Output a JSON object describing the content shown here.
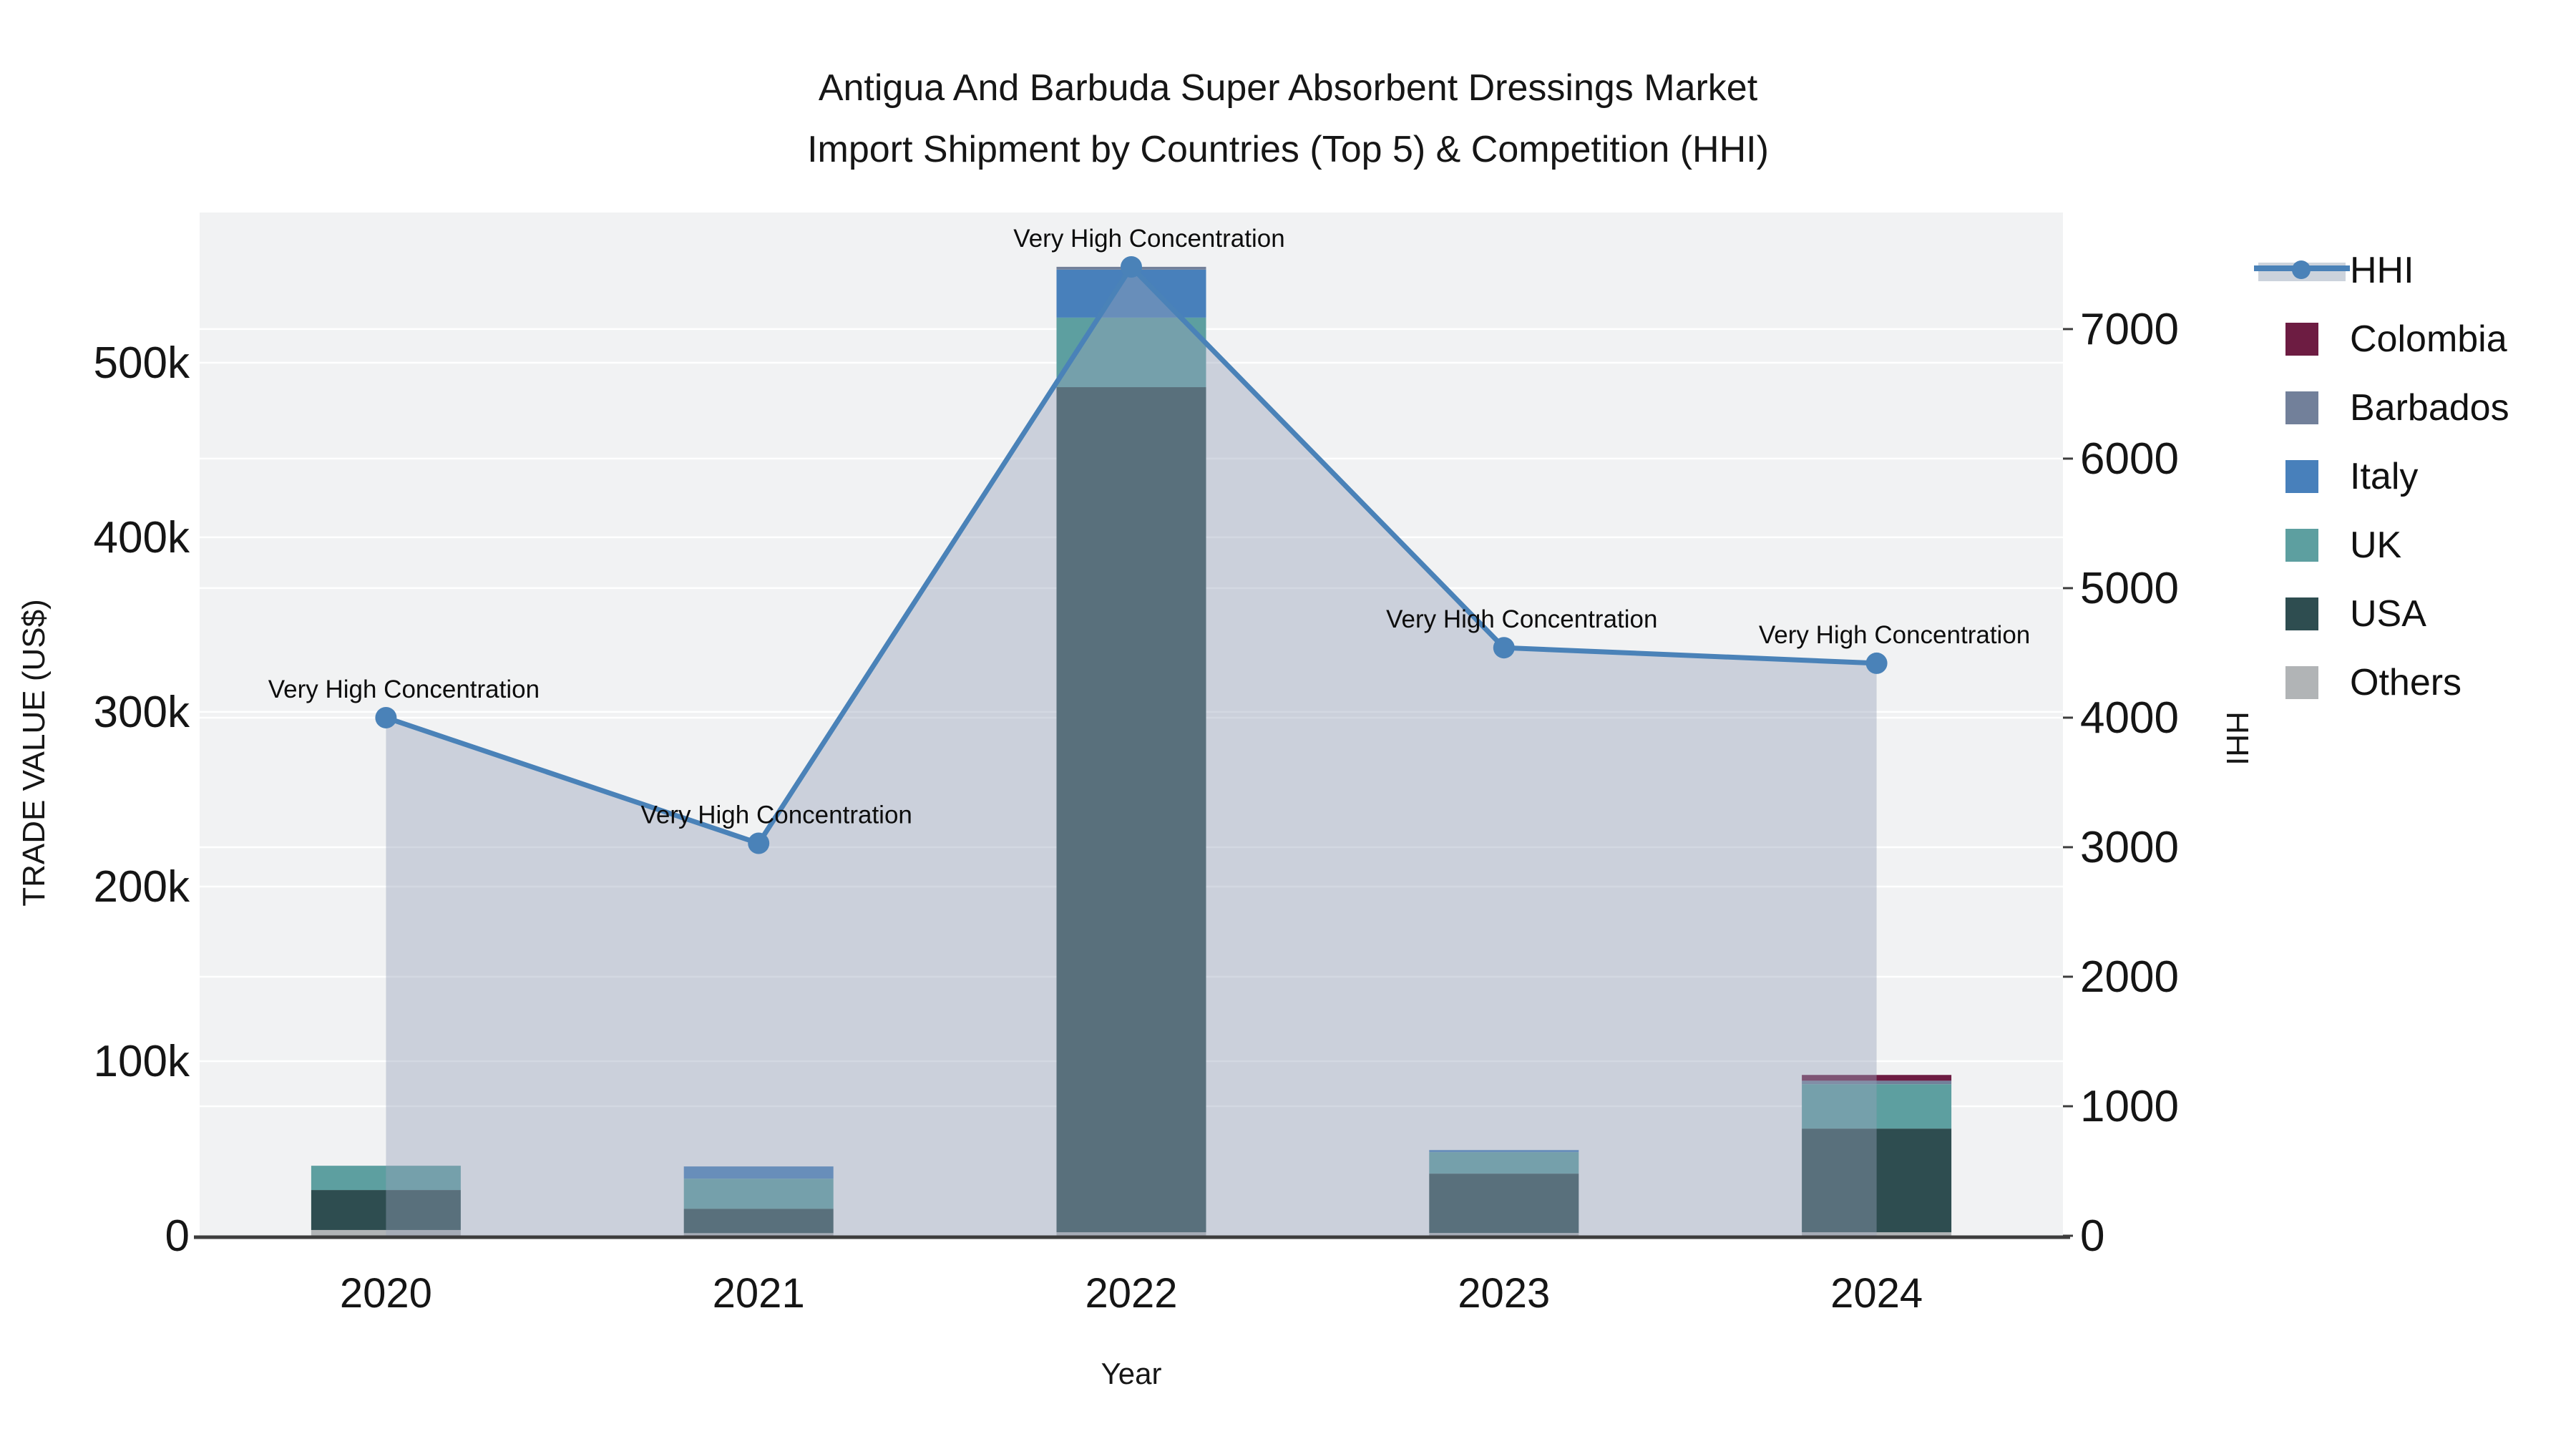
{
  "title": {
    "line1": "Antigua And Barbuda Super Absorbent Dressings Market",
    "line2": "Import Shipment by Countries (Top 5) & Competition (HHI)"
  },
  "axes": {
    "left_title": "TRADE VALUE (US$)",
    "right_title": "HHI",
    "x_title": "Year",
    "left_ticks": [
      {
        "value": 0,
        "label": "0"
      },
      {
        "value": 100000,
        "label": "100k"
      },
      {
        "value": 200000,
        "label": "200k"
      },
      {
        "value": 300000,
        "label": "300k"
      },
      {
        "value": 400000,
        "label": "400k"
      },
      {
        "value": 500000,
        "label": "500k"
      }
    ],
    "right_ticks": [
      {
        "value": 0,
        "label": "0"
      },
      {
        "value": 1000,
        "label": "1000"
      },
      {
        "value": 2000,
        "label": "2000"
      },
      {
        "value": 3000,
        "label": "3000"
      },
      {
        "value": 4000,
        "label": "4000"
      },
      {
        "value": 5000,
        "label": "5000"
      },
      {
        "value": 6000,
        "label": "6000"
      },
      {
        "value": 7000,
        "label": "7000"
      }
    ],
    "left_range": [
      0,
      586000
    ],
    "right_range": [
      0,
      7900
    ]
  },
  "chart_data": {
    "type": "bar+line",
    "title": "Antigua And Barbuda Super Absorbent Dressings Market Import Shipment by Countries (Top 5) & Competition (HHI)",
    "xlabel": "Year",
    "ylabel_left": "TRADE VALUE (US$)",
    "ylabel_right": "HHI",
    "categories": [
      "2020",
      "2021",
      "2022",
      "2023",
      "2024"
    ],
    "bar_unit": "US$",
    "stack_order_bottom_to_top": [
      "Others",
      "USA",
      "UK",
      "Italy",
      "Barbados",
      "Colombia"
    ],
    "series": [
      {
        "name": "Others",
        "color": "#b1b4b6",
        "values": [
          3300,
          1500,
          2000,
          1600,
          2000
        ]
      },
      {
        "name": "USA",
        "color": "#2e4d50",
        "values": [
          22900,
          14000,
          484000,
          34000,
          59400
        ]
      },
      {
        "name": "UK",
        "color": "#5d9fa0",
        "values": [
          13900,
          17200,
          39800,
          12300,
          25400
        ]
      },
      {
        "name": "Italy",
        "color": "#4880bb",
        "values": [
          0,
          7000,
          27500,
          1200,
          0
        ]
      },
      {
        "name": "Barbados",
        "color": "#72809a",
        "values": [
          0,
          0,
          1600,
          0,
          2000
        ]
      },
      {
        "name": "Colombia",
        "color": "#6d1c42",
        "values": [
          0,
          0,
          0,
          0,
          3300
        ]
      }
    ],
    "line": {
      "name": "HHI",
      "color": "#4a82b8",
      "area_color": "rgba(150,162,185,0.42)",
      "values": [
        4000,
        3030,
        7480,
        4540,
        4420
      ]
    },
    "annotations": [
      "Very High Concentration",
      "Very High Concentration",
      "Very High Concentration",
      "Very High Concentration",
      "Very High Concentration"
    ],
    "legend_position": "right",
    "grid": true,
    "plot_bg": "#f1f2f3",
    "grid_color": "#ffffff",
    "axis_line_color": "#3d3d3d",
    "text_color": "#151515"
  },
  "legend": {
    "items": [
      {
        "series": "HHI",
        "label": "HHI"
      },
      {
        "series": "Colombia",
        "label": "Colombia"
      },
      {
        "series": "Barbados",
        "label": "Barbados"
      },
      {
        "series": "Italy",
        "label": "Italy"
      },
      {
        "series": "UK",
        "label": "UK"
      },
      {
        "series": "USA",
        "label": "USA"
      },
      {
        "series": "Others",
        "label": "Others"
      }
    ]
  }
}
